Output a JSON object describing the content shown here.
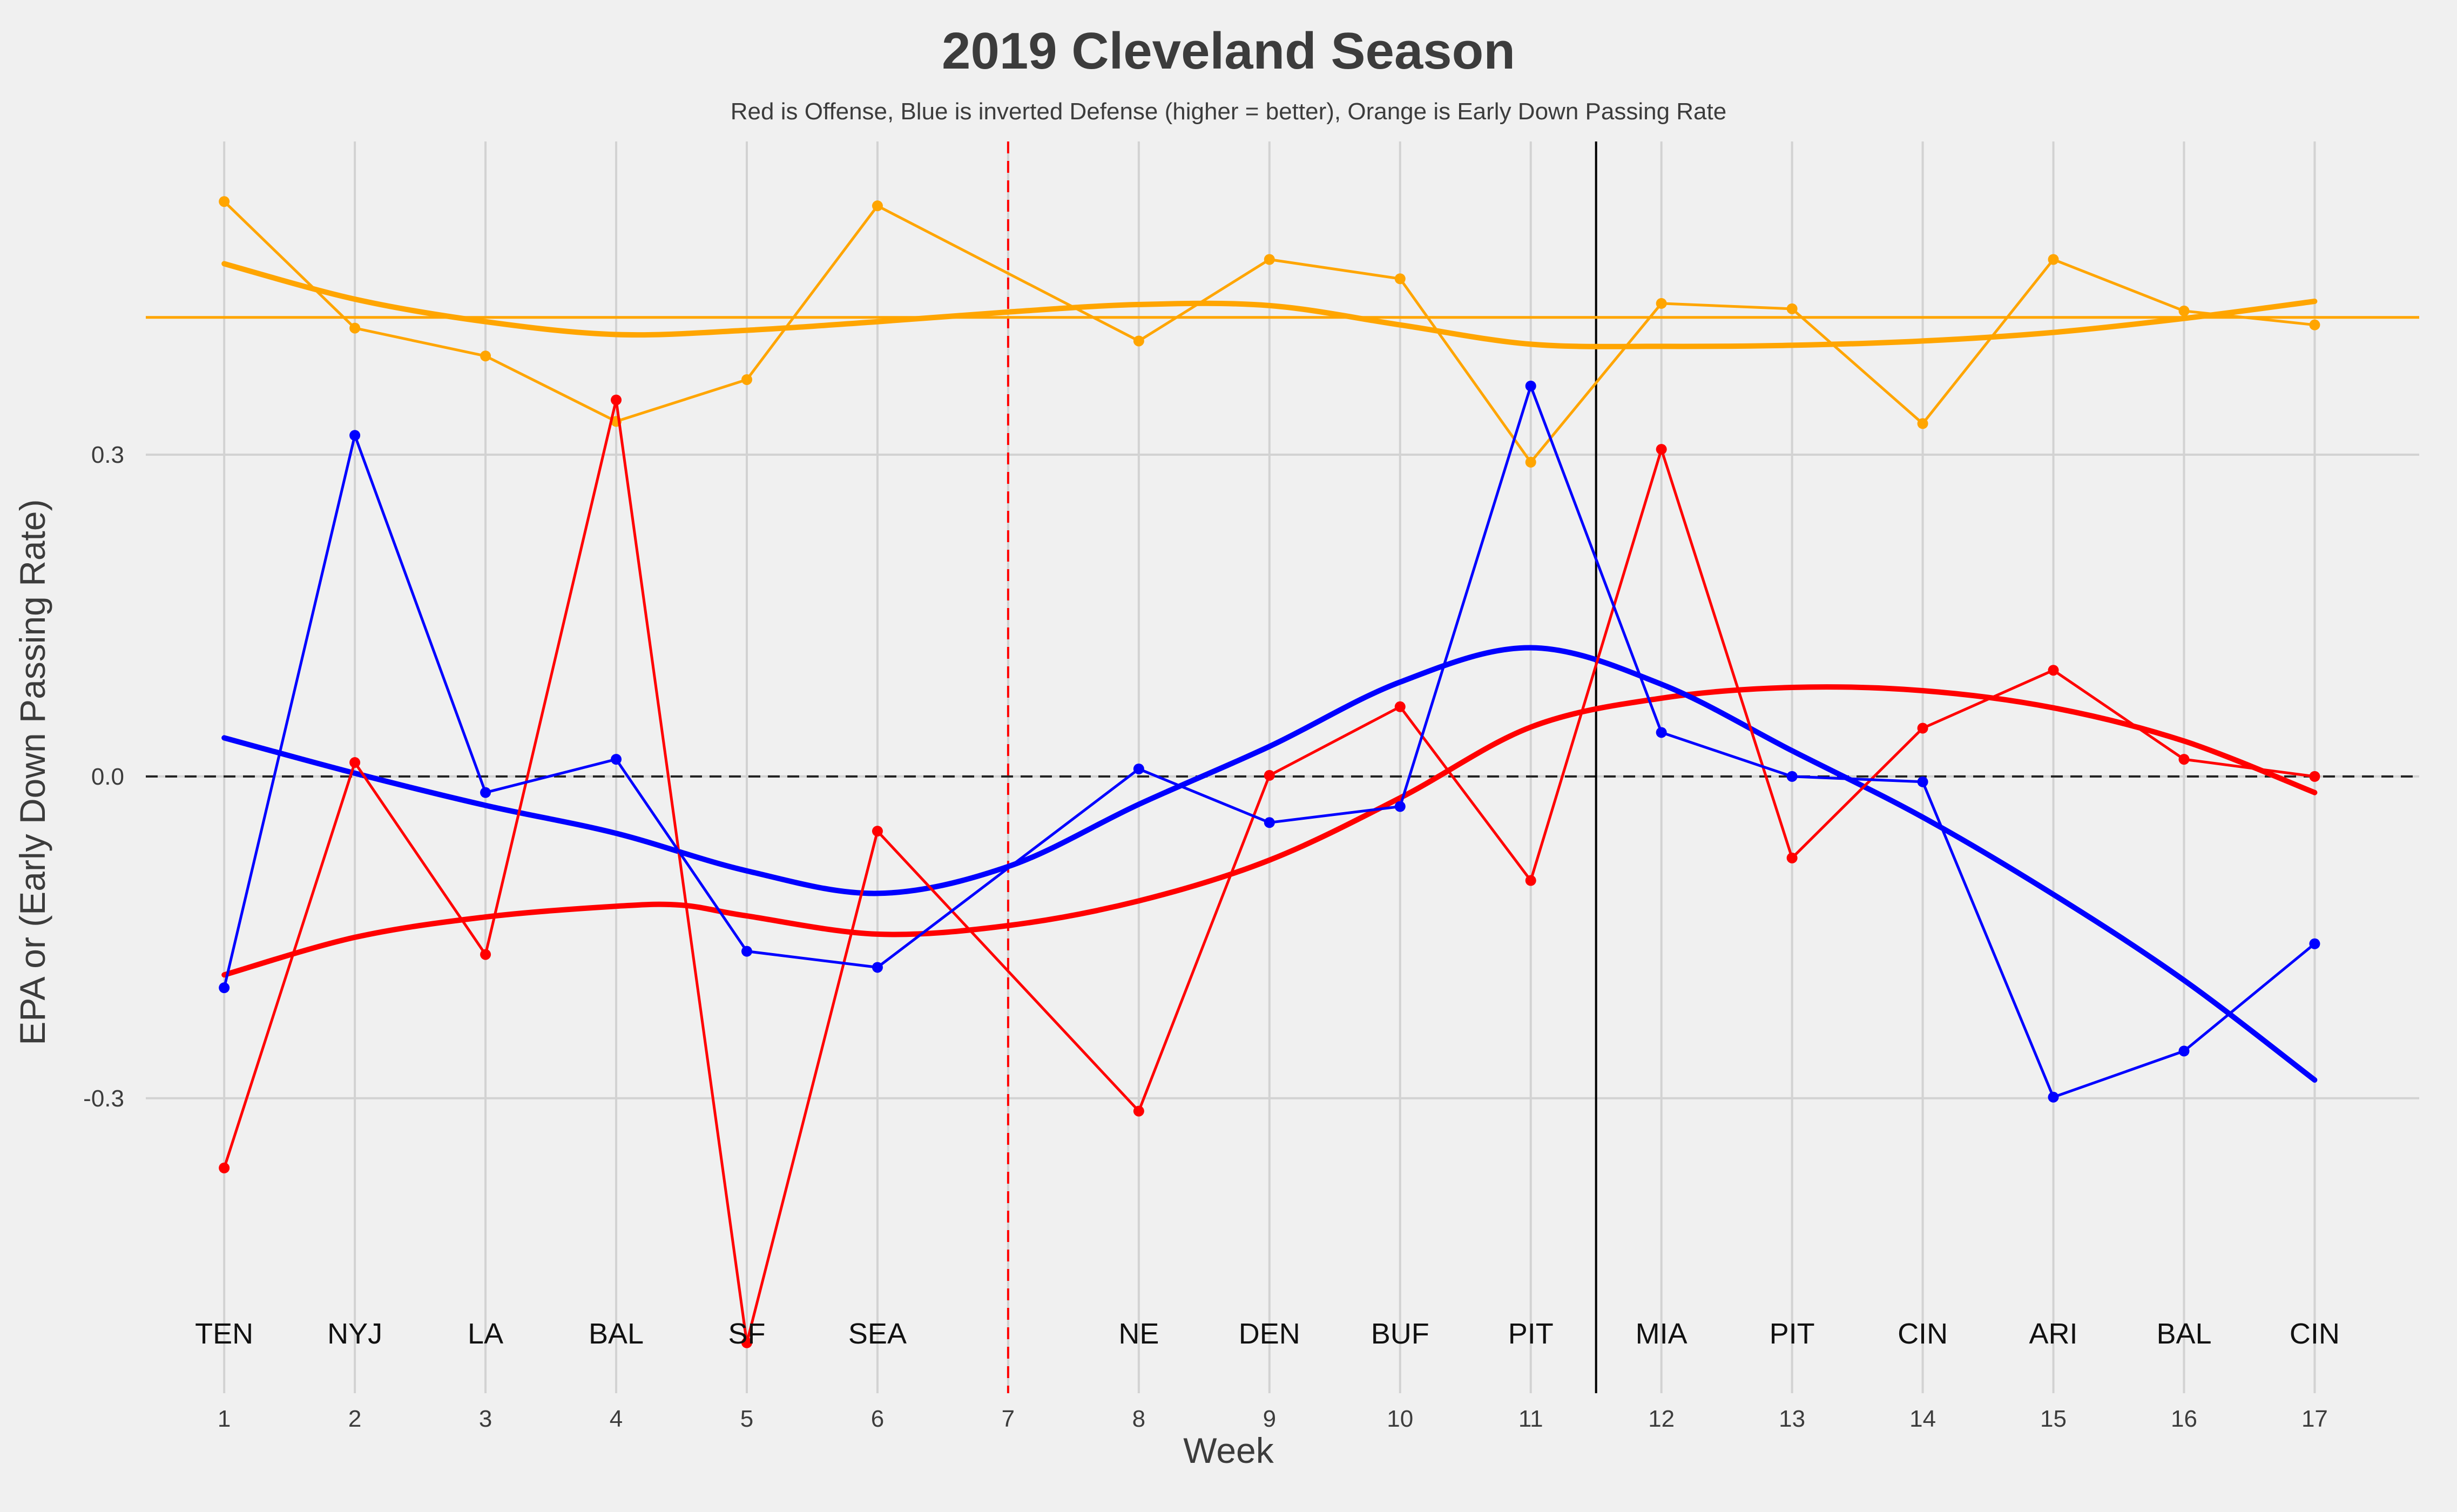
{
  "chart_data": {
    "type": "line",
    "title": "2019 Cleveland Season",
    "subtitle": "Red is Offense, Blue is inverted Defense (higher = better), Orange is Early Down Passing Rate",
    "xlabel": "Week",
    "ylabel": "EPA or (Early Down Passing Rate)",
    "x_ticks": [
      1,
      2,
      3,
      4,
      5,
      6,
      7,
      8,
      9,
      10,
      11,
      12,
      13,
      14,
      15,
      16,
      17
    ],
    "y_ticks": [
      -0.3,
      0.0,
      0.3
    ],
    "y_tick_labels": [
      "-0.3",
      "0.0",
      "0.3"
    ],
    "xlim": [
      0.4,
      17.8
    ],
    "ylim": [
      -0.575,
      0.592
    ],
    "grid": true,
    "opponents": [
      {
        "week": 1,
        "team": "TEN"
      },
      {
        "week": 2,
        "team": "NYJ"
      },
      {
        "week": 3,
        "team": "LA"
      },
      {
        "week": 4,
        "team": "BAL"
      },
      {
        "week": 5,
        "team": "SF"
      },
      {
        "week": 6,
        "team": "SEA"
      },
      {
        "week": 8,
        "team": "NE"
      },
      {
        "week": 9,
        "team": "DEN"
      },
      {
        "week": 10,
        "team": "BUF"
      },
      {
        "week": 11,
        "team": "PIT"
      },
      {
        "week": 12,
        "team": "MIA"
      },
      {
        "week": 13,
        "team": "PIT"
      },
      {
        "week": 14,
        "team": "CIN"
      },
      {
        "week": 15,
        "team": "ARI"
      },
      {
        "week": 16,
        "team": "BAL"
      },
      {
        "week": 17,
        "team": "CIN"
      }
    ],
    "series": [
      {
        "color": "#ff0000",
        "x": [
          1,
          2,
          3,
          4,
          5,
          6,
          8,
          9,
          10,
          11,
          12,
          13,
          14,
          15,
          16,
          17
        ],
        "values": [
          -0.365,
          0.013,
          -0.166,
          0.351,
          -0.528,
          -0.051,
          -0.312,
          0.001,
          0.065,
          -0.097,
          0.305,
          -0.076,
          0.045,
          0.099,
          0.016,
          0.0
        ],
        "smooth": {
          "x": [
            1,
            2,
            3,
            4,
            4.5,
            5,
            6,
            7,
            8,
            9,
            10,
            11,
            12,
            13,
            14,
            15,
            16,
            17
          ],
          "values": [
            -0.185,
            -0.15,
            -0.131,
            -0.121,
            -0.12,
            -0.13,
            -0.147,
            -0.139,
            -0.116,
            -0.078,
            -0.02,
            0.046,
            0.073,
            0.083,
            0.08,
            0.064,
            0.033,
            -0.015
          ]
        }
      },
      {
        "color": "#0000ff",
        "x": [
          1,
          2,
          3,
          4,
          5,
          6,
          8,
          9,
          10,
          11,
          12,
          13,
          14,
          15,
          16,
          17
        ],
        "values": [
          -0.197,
          0.318,
          -0.015,
          0.016,
          -0.163,
          -0.178,
          0.007,
          -0.043,
          -0.028,
          0.364,
          0.041,
          0.0,
          -0.005,
          -0.299,
          -0.256,
          -0.156
        ],
        "smooth": {
          "x": [
            1,
            2,
            3,
            4,
            5,
            6,
            7,
            8,
            9,
            10,
            11,
            12,
            13,
            14,
            15,
            16,
            17
          ],
          "values": [
            0.036,
            0.003,
            -0.027,
            -0.053,
            -0.088,
            -0.109,
            -0.084,
            -0.026,
            0.028,
            0.088,
            0.12,
            0.086,
            0.024,
            -0.038,
            -0.11,
            -0.19,
            -0.283
          ]
        }
      },
      {
        "color": "#ffa500",
        "x": [
          1,
          2,
          3,
          4,
          5,
          6,
          8,
          9,
          10,
          11,
          12,
          13,
          14,
          15,
          16,
          17
        ],
        "values": [
          0.536,
          0.418,
          0.392,
          0.331,
          0.37,
          0.532,
          0.406,
          0.482,
          0.464,
          0.293,
          0.441,
          0.436,
          0.329,
          0.482,
          0.434,
          0.421
        ],
        "smooth": {
          "x": [
            1,
            2,
            3,
            4,
            5,
            6,
            7,
            8,
            9,
            10,
            11,
            12,
            13,
            14,
            15,
            16,
            17
          ],
          "values": [
            0.478,
            0.445,
            0.424,
            0.412,
            0.416,
            0.424,
            0.433,
            0.44,
            0.439,
            0.421,
            0.403,
            0.401,
            0.402,
            0.406,
            0.414,
            0.427,
            0.443
          ]
        },
        "mean": 0.428
      }
    ],
    "reference_lines": {
      "zero_line": {
        "y": 0.0,
        "style": "dashed",
        "color": "#222222"
      },
      "bye_week": {
        "x": 7,
        "style": "dashed",
        "color": "#ff0000"
      },
      "split_line": {
        "x": 11.5,
        "style": "solid",
        "color": "#000000"
      }
    }
  }
}
